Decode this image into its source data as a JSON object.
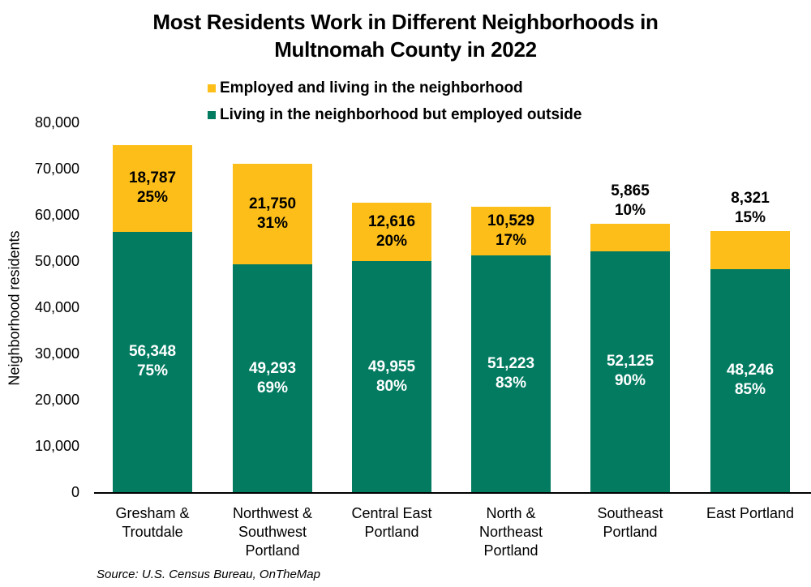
{
  "colors": {
    "inside": "#FDBE19",
    "outside": "#027B61",
    "axis": "#000000"
  },
  "chart_data": {
    "type": "bar",
    "stacked": true,
    "title": "Most Residents Work in Different Neighborhoods in Multnomah County in 2022",
    "title_lines": [
      "Most Residents Work in Different Neighborhoods in",
      "Multnomah County in 2022"
    ],
    "xlabel": "",
    "ylabel": "Neighborhood residents",
    "ylim": [
      0,
      80000
    ],
    "yticks": [
      "80,000",
      "70,000",
      "60,000",
      "50,000",
      "40,000",
      "30,000",
      "20,000",
      "10,000",
      "0"
    ],
    "grid": false,
    "legend_position": "top",
    "categories": [
      "Gresham & Troutdale",
      "Northwest & Southwest Portland",
      "Central East Portland",
      "North & Northeast Portland",
      "Southeast Portland",
      "East Portland"
    ],
    "category_lines": [
      [
        "Gresham &",
        "Troutdale"
      ],
      [
        "Northwest &",
        "Southwest",
        "Portland"
      ],
      [
        "Central East",
        "Portland"
      ],
      [
        "North &",
        "Northeast",
        "Portland"
      ],
      [
        "Southeast",
        "Portland"
      ],
      [
        "East Portland"
      ]
    ],
    "series": [
      {
        "name": "Living in the neighborhood but employed outside",
        "color": "#027B61",
        "values": [
          56348,
          49293,
          49955,
          51223,
          52125,
          48246
        ],
        "labels": [
          "56,348",
          "49,293",
          "49,955",
          "51,223",
          "52,125",
          "48,246"
        ],
        "percents": [
          "75%",
          "69%",
          "80%",
          "83%",
          "90%",
          "85%"
        ]
      },
      {
        "name": "Employed and living in the neighborhood",
        "color": "#FDBE19",
        "values": [
          18787,
          21750,
          12616,
          10529,
          5865,
          8321
        ],
        "labels": [
          "18,787",
          "21,750",
          "12,616",
          "10,529",
          "5,865",
          "8,321"
        ],
        "percents": [
          "25%",
          "31%",
          "20%",
          "17%",
          "10%",
          "15%"
        ]
      }
    ],
    "source": "Source: U.S. Census Bureau, OnTheMap"
  },
  "legend": {
    "items": [
      {
        "label": "Employed and living in the neighborhood",
        "color": "#FDBE19"
      },
      {
        "label": "Living in the neighborhood but employed outside",
        "color": "#027B61"
      }
    ]
  }
}
